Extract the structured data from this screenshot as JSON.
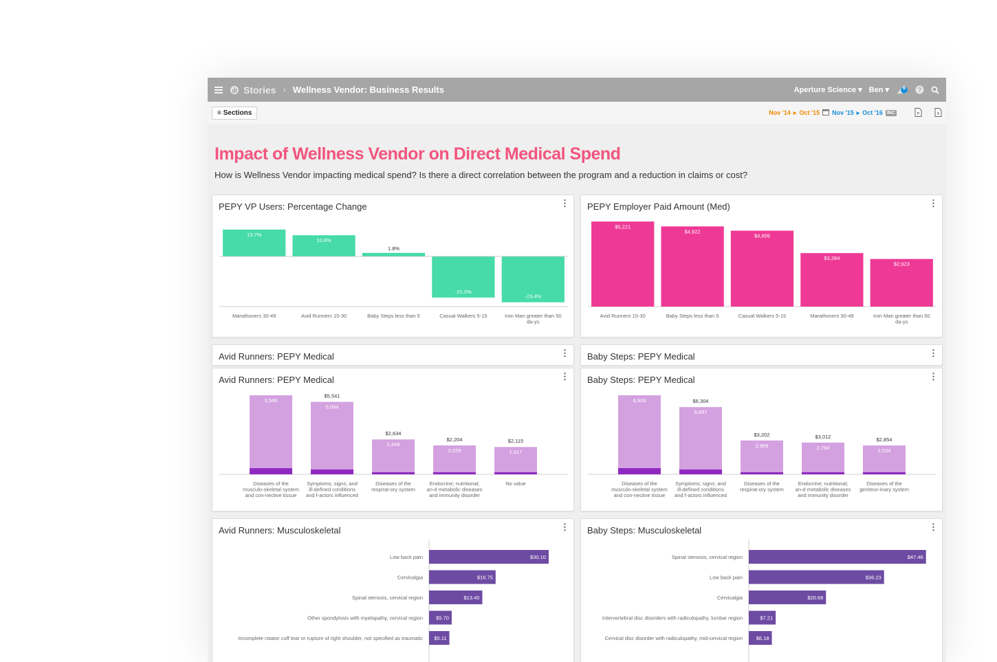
{
  "header": {
    "app_name": "Stories",
    "title": "Wellness Vendor: Business Results",
    "org": "Aperture Science",
    "user": "Ben",
    "notification_count": "6"
  },
  "toolbar": {
    "sections_label": "Sections",
    "date_compare_start": "Nov '14",
    "date_compare_end": "Oct '15",
    "date_current_start": "Nov '15",
    "date_current_end": "Oct '16",
    "inc_badge": "INC"
  },
  "page": {
    "title": "Impact of Wellness Vendor on Direct Medical Spend",
    "subtitle": "How is Wellness Vendor impacting medical spend? Is there a direct correlation between the program and a reduction in claims or cost?"
  },
  "colors": {
    "green": "#46dba8",
    "pink": "#ee3a96",
    "lilac": "#d4a1e0",
    "purple_base": "#8f2ac1",
    "bar_purple": "#6e4ba3",
    "title_pink": "#f2557e"
  },
  "cards": {
    "vp_users": {
      "title": "PEPY VP Users: Percentage Change"
    },
    "employer_paid": {
      "title": "PEPY Employer Paid Amount (Med)"
    },
    "avid_header": {
      "title": "Avid Runners: PEPY Medical"
    },
    "baby_header": {
      "title": "Baby Steps: PEPY Medical"
    },
    "avid_medical": {
      "title": "Avid Runners: PEPY Medical"
    },
    "baby_medical": {
      "title": "Baby Steps: PEPY Medical"
    },
    "avid_msk": {
      "title": "Avid Runners: Musculoskeletal"
    },
    "baby_msk": {
      "title": "Baby Steps: Musculoskeletal"
    }
  },
  "chart_data": [
    {
      "id": "vp_users",
      "type": "bar",
      "categories": [
        "Marathoners 30-49",
        "Avid Runners 15-30",
        "Baby Steps less than 5",
        "Casual Walkers 5-15",
        "Iron Man greater than 50 da-ys"
      ],
      "values": [
        13.7,
        10.8,
        1.8,
        -21.0,
        -23.4
      ],
      "labels": [
        "13.7%",
        "10.8%",
        "1.8%",
        "-21.0%",
        "-23.4%"
      ],
      "color": "#46dba8"
    },
    {
      "id": "employer_paid",
      "type": "bar",
      "categories": [
        "Avid Runners 15-30",
        "Baby Steps less than 5",
        "Casual Walkers 5-15",
        "Marathoners 30-49",
        "Iron Man greater than 50 da-ys"
      ],
      "values": [
        5221,
        4922,
        4659,
        3284,
        2923
      ],
      "labels": [
        "$5,221",
        "$4,922",
        "$4,659",
        "$3,284",
        "$2,923"
      ],
      "color": "#ee3a96"
    },
    {
      "id": "avid_medical",
      "type": "bar",
      "categories": [
        "Diseases of the musculo-skeletal system and con-nective tissue",
        "Symptoms; signs; and ill-defined conditions and f-actors influenced",
        "Diseases of the respirat-ory system",
        "Endocrine; nutritional; an-d metabolic diseases and immunity disorder",
        "No value"
      ],
      "series": [
        {
          "values": [
            5546,
            5084,
            2449,
            2029,
            1917
          ],
          "labels": [
            "5,546",
            "5,084",
            "2,449",
            "2,029",
            "1,917"
          ]
        }
      ],
      "totals": [
        "",
        "$5,541",
        "$2,634",
        "$2,204",
        "$2,115"
      ],
      "base_values": [
        5546,
        5541,
        2634,
        2204,
        2115
      ],
      "colors": [
        "#d4a1e0",
        "#8f2ac1"
      ]
    },
    {
      "id": "baby_medical",
      "type": "bar",
      "categories": [
        "Diseases of the musculo-skeletal system and con-nective tissue",
        "Symptoms; signs; and ill-defined conditions and f-actors influenced",
        "Diseases of the respirat-ory system",
        "Endocrine; nutritional; an-d metabolic diseases and immunity disorder",
        "Diseases of the genitour-inary system"
      ],
      "series": [
        {
          "values": [
            6933,
            5897,
            2969,
            2784,
            2534
          ],
          "labels": [
            "6,933",
            "5,897",
            "2,969",
            "2,784",
            "2,534"
          ]
        }
      ],
      "totals": [
        "",
        "$6,304",
        "$3,202",
        "$3,012",
        "$2,854"
      ],
      "base_values": [
        6933,
        6304,
        3202,
        3012,
        2854
      ],
      "colors": [
        "#d4a1e0",
        "#8f2ac1"
      ]
    },
    {
      "id": "avid_msk",
      "type": "bar",
      "orientation": "horizontal",
      "categories": [
        "Low back pain",
        "Cervicalgia",
        "Spinal stenosis, cervical region",
        "Other spondylosis with myelopathy, cervical region",
        "Incomplete rotator cuff tear or rupture of right shoulder, not specified as traumatic"
      ],
      "values": [
        30.1,
        16.75,
        13.4,
        5.7,
        5.11
      ],
      "labels": [
        "$30.10",
        "$16.75",
        "$13.40",
        "$5.70",
        "$5.11"
      ],
      "color": "#6e4ba3"
    },
    {
      "id": "baby_msk",
      "type": "bar",
      "orientation": "horizontal",
      "categories": [
        "Spinal stenosis, cervical region",
        "Low back pain",
        "Cervicalgia",
        "Intervertebral disc disorders with radiculopathy, lumbar region",
        "Cervical disc disorder with radiculopathy, mid-cervical region"
      ],
      "values": [
        47.46,
        36.23,
        20.68,
        7.21,
        6.18
      ],
      "labels": [
        "$47.46",
        "$36.23",
        "$20.68",
        "$7.21",
        "$6.18"
      ],
      "color": "#6e4ba3"
    }
  ]
}
